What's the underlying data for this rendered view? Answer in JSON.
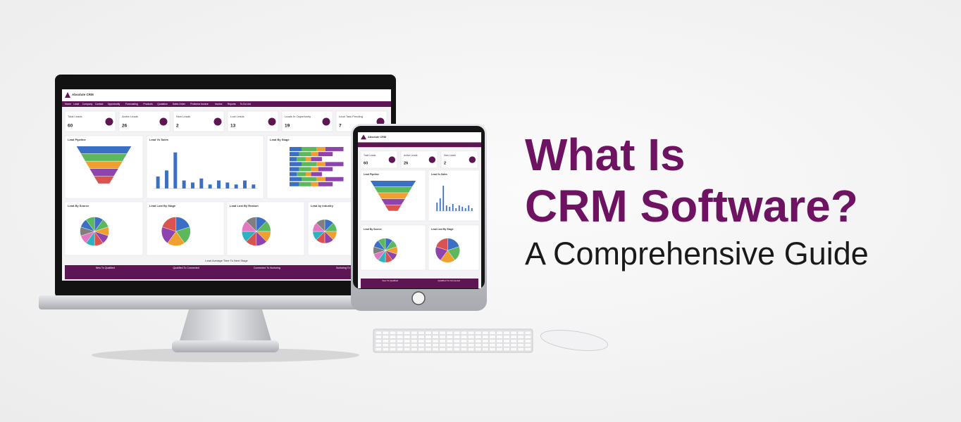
{
  "headline": {
    "line1": "What Is",
    "line2": "CRM Software?",
    "subtitle": "A Comprehensive Guide"
  },
  "monitor": {
    "logo": "Absolute CRM",
    "nav": [
      "Home",
      "Lead",
      "Company",
      "Contact",
      "Opportunity",
      "Forecasting",
      "Products",
      "Quotation",
      "Sales Order",
      "Proforma Invoice",
      "Invoice",
      "Reports",
      "To Do List"
    ],
    "kpis": [
      {
        "label": "Total Leads",
        "value": 60
      },
      {
        "label": "Active Leads",
        "value": 26
      },
      {
        "label": "New Leads",
        "value": 2
      },
      {
        "label": "Lost Leads",
        "value": 13
      },
      {
        "label": "Leads In Opportunity",
        "value": 19
      },
      {
        "label": "Lead Task Pending",
        "value": 7
      }
    ],
    "panels": [
      "Lead Pipeline",
      "Lead Vs Sales",
      "Lead By Stage",
      "Lead By Source",
      "Lead Lost By Stage",
      "Lead Lost By Reason",
      "Lead by Industry"
    ],
    "table_title": "Lead Average Time To Next Stage",
    "table_headers": [
      "New To Qualified",
      "Qualified To Connected",
      "Connected To Nurturing",
      "Nurturing To Convert"
    ]
  },
  "tablet": {
    "logo": "Absolute CRM",
    "kpis": [
      {
        "label": "Total Leads",
        "value": 60
      },
      {
        "label": "Active Leads",
        "value": 26
      },
      {
        "label": "New Leads",
        "value": 2
      }
    ],
    "panels": [
      "Lead Pipeline",
      "Lead Vs Sales",
      "Lead By Source",
      "Lead Lost By Stage"
    ],
    "table_headers": [
      "New To Qualified",
      "Qualified To Connected"
    ]
  }
}
